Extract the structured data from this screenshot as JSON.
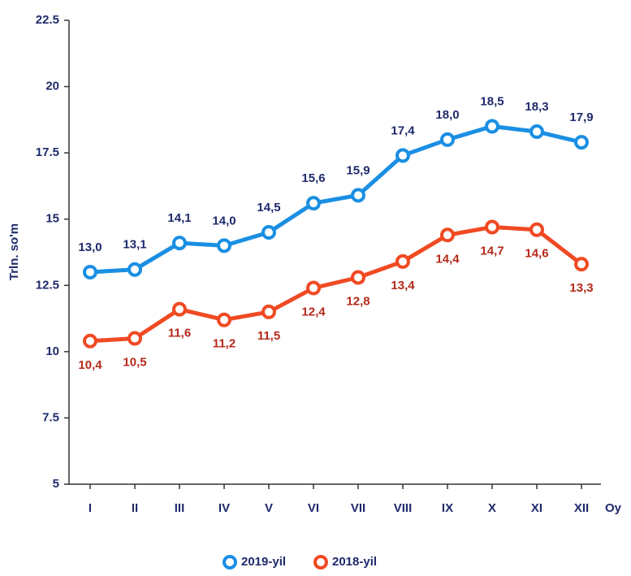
{
  "chart_data": {
    "type": "line",
    "y_label": "Trln. so'm",
    "x_label": "Oy",
    "categories": [
      "I",
      "II",
      "III",
      "IV",
      "V",
      "VI",
      "VII",
      "VIII",
      "IX",
      "X",
      "XI",
      "XII"
    ],
    "series": [
      {
        "name": "2019-yil",
        "color": "#1a8fe3",
        "label_color": "#1f2a6b",
        "values": [
          13.0,
          13.1,
          14.1,
          14.0,
          14.5,
          15.6,
          15.9,
          17.4,
          18.0,
          18.5,
          18.3,
          17.9
        ],
        "value_labels": [
          "13,0",
          "13,1",
          "14,1",
          "14,0",
          "14,5",
          "15,6",
          "15,9",
          "17,4",
          "18,0",
          "18,5",
          "18,3",
          "17,9"
        ]
      },
      {
        "name": "2018-yil",
        "color": "#f04a23",
        "label_color": "#b5281a",
        "values": [
          10.4,
          10.5,
          11.6,
          11.2,
          11.5,
          12.4,
          12.8,
          13.4,
          14.4,
          14.7,
          14.6,
          13.3
        ],
        "value_labels": [
          "10,4",
          "10,5",
          "11,6",
          "11,2",
          "11,5",
          "12,4",
          "12,8",
          "13,4",
          "14,4",
          "14,7",
          "14,6",
          "13,3"
        ]
      }
    ],
    "ylim": [
      5,
      22.5
    ],
    "yticks": [
      5,
      7.5,
      10,
      12.5,
      15,
      17.5,
      20,
      22.5
    ],
    "grid": false,
    "legend": "bottom"
  }
}
